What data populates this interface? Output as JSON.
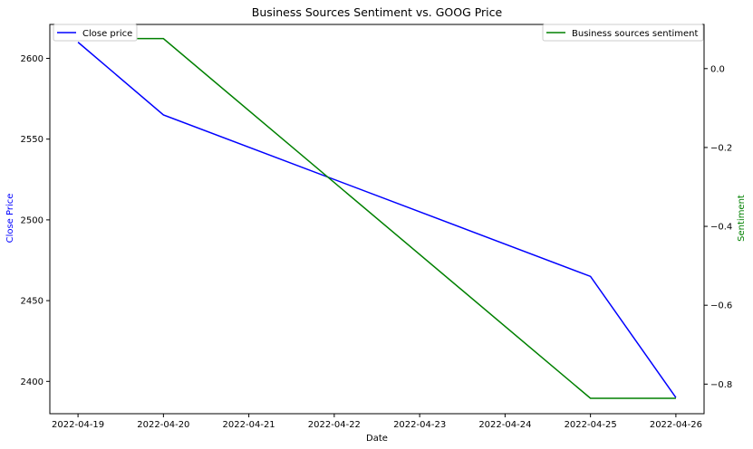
{
  "chart_data": {
    "type": "line",
    "title": "Business Sources Sentiment vs. GOOG Price",
    "xlabel": "Date",
    "ylabel_left": "Close Price",
    "ylabel_right": "Sentiment",
    "x_ticks": [
      "2022-04-19",
      "2022-04-20",
      "2022-04-21",
      "2022-04-22",
      "2022-04-23",
      "2022-04-24",
      "2022-04-25",
      "2022-04-26"
    ],
    "xlim": [
      "2022-04-18.67",
      "2022-04-26.33"
    ],
    "y_left_ticks": [
      2400,
      2450,
      2500,
      2550,
      2600
    ],
    "y_left_lim": [
      2380,
      2621
    ],
    "y_right_ticks": [
      0.0,
      -0.2,
      -0.4,
      -0.6,
      -0.8
    ],
    "y_right_tick_labels": [
      "0.0",
      "−0.2",
      "−0.4",
      "−0.6",
      "−0.8"
    ],
    "y_right_lim": [
      -0.875,
      0.112
    ],
    "grid": false,
    "series": [
      {
        "name": "Close price",
        "axis": "left",
        "color": "#0000ff",
        "x": [
          "2022-04-19",
          "2022-04-20",
          "2022-04-25",
          "2022-04-26"
        ],
        "values": [
          2610,
          2565,
          2465,
          2390
        ],
        "legend_position": "top-left"
      },
      {
        "name": "Business sources sentiment",
        "axis": "right",
        "color": "#008000",
        "x": [
          "2022-04-19",
          "2022-04-20",
          "2022-04-25",
          "2022-04-26"
        ],
        "values": [
          0.076,
          0.076,
          -0.836,
          -0.836
        ],
        "legend_position": "top-right"
      }
    ],
    "colors": {
      "left_label": "#0000ff",
      "right_label": "#008000",
      "axis": "#000000"
    }
  }
}
